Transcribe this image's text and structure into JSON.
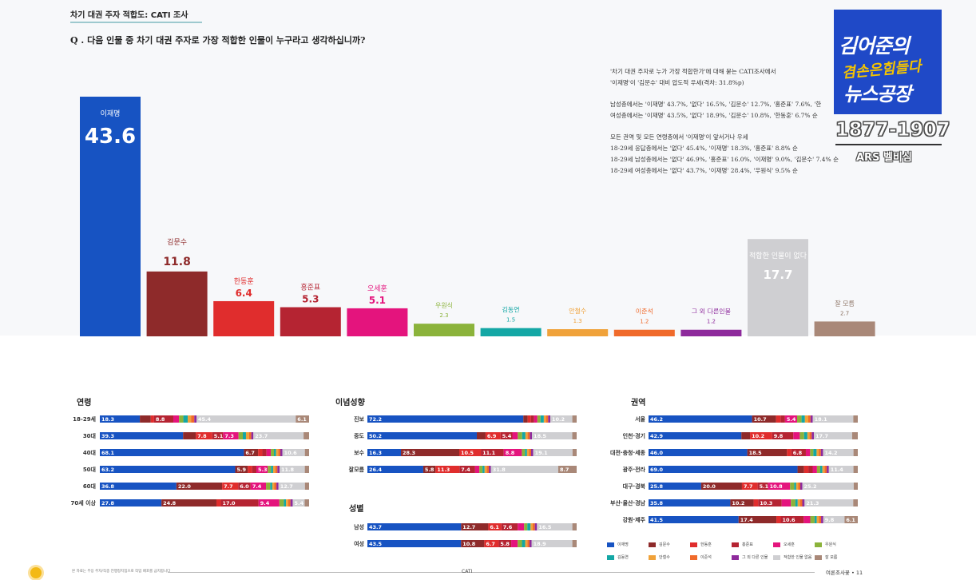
{
  "header": {
    "title": "차기 대권 주자 적합도: CATI 조사",
    "question": "Q . 다음 인물 중 차기 대권 주자로 가장 적합한 인물이 누구라고 생각하십니까?"
  },
  "summary": [
    "'차기 대권 주자로 누가 가장 적합한가'에 대해 묻는 CATI조사에서",
    "'이재명'이 '김문수' 대비 압도적 우세(격차: 31.8%p)",
    "",
    "남성층에서는 '이재명' 43.7%, '없다' 16.5%, '김문수' 12.7%, '홍준표' 7.6%, '한",
    "여성층에서는 '이재명' 43.5%, '없다' 18.9%, '김문수' 10.8%, '한동훈' 6.7% 순",
    "",
    "모든 권역 및 모든 연령층에서 '이재명'이 앞서거나 우세",
    "18-29세 응답층에서는 '없다' 45.4%, '이재명' 18.3%, '홍준표' 8.8% 순",
    "18-29세 남성층에서는 '없다' 46.9%, '홍준표' 16.0%, '이재명' 9.0%, '김문수' 7.4% 순",
    "18-29세 여성층에서는 '없다' 43.7%, '이재명' 28.4%, '우원식' 9.5% 순"
  ],
  "logo": {
    "line1": "김어준의",
    "line2": "겸손은힘들다",
    "line3": "뉴스공장",
    "phone": "1877-1907",
    "ars": "ARS 벨비심"
  },
  "chart_data": [
    {
      "type": "bar",
      "categories": [
        "이재명",
        "김문수",
        "한동훈",
        "홍준표",
        "오세훈",
        "우원식",
        "김동연",
        "안철수",
        "이준석",
        "그 외 다른인물",
        "적합한 인물이 없다",
        "잘 모름"
      ],
      "values": [
        43.6,
        11.8,
        6.4,
        5.3,
        5.1,
        2.3,
        1.5,
        1.3,
        1.2,
        1.2,
        17.7,
        2.7
      ],
      "colors": [
        "#1753c2",
        "#8e2a2a",
        "#e02d2d",
        "#b52432",
        "#e4147d",
        "#8bb33b",
        "#14a7a5",
        "#f0a23a",
        "#f06a2b",
        "#8e2a9c",
        "#cfcfd2",
        "#a98878"
      ],
      "label_colors": [
        "#ffffff",
        "#8e2a2a",
        "#e02d2d",
        "#b52432",
        "#e4147d",
        "#8bb33b",
        "#14a7a5",
        "#f0a23a",
        "#f06a2b",
        "#8e2a9c",
        "#ffffff",
        "#8a7060"
      ],
      "ylim": [
        0,
        43.6
      ]
    },
    {
      "type": "bar",
      "stacked": true,
      "orientation": "horizontal",
      "title": "연령",
      "categories": [
        "18-29세",
        "30대",
        "40대",
        "50대",
        "60대",
        "70세 이상"
      ],
      "series_values": [
        [
          18.3,
          5.0,
          1.5,
          8.8,
          2.6,
          2.0,
          2.0,
          1.5,
          1.5,
          1.0,
          45.4,
          6.1
        ],
        [
          39.3,
          6.0,
          7.8,
          5.1,
          7.3,
          2.0,
          1.5,
          1.5,
          1.0,
          1.0,
          23.7,
          2.6
        ],
        [
          68.1,
          6.7,
          2.0,
          2.0,
          2.0,
          1.5,
          1.0,
          1.0,
          1.0,
          1.0,
          10.6,
          2.0
        ],
        [
          63.2,
          5.9,
          2.0,
          2.0,
          5.3,
          1.5,
          1.0,
          1.0,
          1.0,
          1.0,
          11.8,
          2.0
        ],
        [
          36.8,
          22.0,
          7.7,
          6.0,
          7.4,
          2.0,
          1.0,
          1.0,
          1.0,
          1.0,
          12.7,
          2.0
        ],
        [
          27.8,
          24.8,
          2.0,
          17.0,
          9.4,
          2.0,
          1.0,
          1.0,
          1.0,
          1.0,
          5.4,
          2.0
        ]
      ],
      "labels": [
        [
          "18.3",
          "",
          "",
          "8.8",
          "",
          "",
          "",
          "",
          "",
          "",
          "45.4",
          "6.1"
        ],
        [
          "39.3",
          "",
          "7.8",
          "5.1",
          "7.3",
          "",
          "",
          "",
          "",
          "",
          "23.7",
          ""
        ],
        [
          "68.1",
          "6.7",
          "",
          "",
          "",
          "",
          "",
          "",
          "",
          "",
          "10.6",
          ""
        ],
        [
          "63.2",
          "5.9",
          "",
          "",
          "5.3",
          "",
          "",
          "",
          "",
          "",
          "11.8",
          ""
        ],
        [
          "36.8",
          "22.0",
          "7.7",
          "6.0",
          "7.4",
          "",
          "",
          "",
          "",
          "",
          "12.7",
          ""
        ],
        [
          "27.8",
          "24.8",
          "",
          "17.0",
          "9.4",
          "",
          "",
          "",
          "",
          "",
          "5.4",
          ""
        ]
      ]
    },
    {
      "type": "bar",
      "stacked": true,
      "orientation": "horizontal",
      "title": "이념성향",
      "categories": [
        "진보",
        "중도",
        "보수",
        "잘모름"
      ],
      "series_values": [
        [
          72.2,
          2.0,
          1.5,
          1.5,
          1.5,
          1.5,
          1.5,
          1.0,
          1.0,
          1.0,
          10.2,
          2.0
        ],
        [
          50.2,
          4.0,
          6.9,
          5.4,
          2.5,
          2.0,
          1.5,
          1.0,
          1.0,
          1.0,
          18.5,
          2.0
        ],
        [
          16.3,
          28.3,
          10.5,
          11.1,
          8.8,
          1.5,
          1.0,
          1.0,
          1.0,
          1.0,
          19.1,
          2.0
        ],
        [
          26.4,
          5.8,
          11.3,
          7.4,
          2.0,
          1.5,
          1.0,
          1.0,
          1.0,
          1.0,
          31.8,
          8.7
        ]
      ],
      "labels": [
        [
          "72.2",
          "",
          "",
          "",
          "",
          "",
          "",
          "",
          "",
          "",
          "10.2",
          ""
        ],
        [
          "50.2",
          "",
          "6.9",
          "5.4",
          "",
          "",
          "",
          "",
          "",
          "",
          "18.5",
          ""
        ],
        [
          "16.3",
          "28.3",
          "10.5",
          "11.1",
          "8.8",
          "",
          "",
          "",
          "",
          "",
          "19.1",
          ""
        ],
        [
          "26.4",
          "5.8",
          "11.3",
          "7.4",
          "",
          "",
          "",
          "",
          "",
          "",
          "31.8",
          "8.7"
        ]
      ]
    },
    {
      "type": "bar",
      "stacked": true,
      "orientation": "horizontal",
      "title": "성별",
      "categories": [
        "남성",
        "여성"
      ],
      "series_values": [
        [
          43.7,
          12.7,
          6.1,
          7.6,
          3.0,
          1.5,
          1.5,
          1.0,
          1.0,
          1.0,
          16.5,
          2.0
        ],
        [
          43.5,
          10.8,
          6.7,
          5.8,
          3.0,
          2.0,
          1.5,
          1.0,
          1.0,
          1.0,
          18.9,
          2.0
        ]
      ],
      "labels": [
        [
          "43.7",
          "12.7",
          "6.1",
          "7.6",
          "",
          "",
          "",
          "",
          "",
          "",
          "16.5",
          ""
        ],
        [
          "43.5",
          "10.8",
          "6.7",
          "5.8",
          "",
          "",
          "",
          "",
          "",
          "",
          "18.9",
          ""
        ]
      ]
    },
    {
      "type": "bar",
      "stacked": true,
      "orientation": "horizontal",
      "title": "권역",
      "categories": [
        "서울",
        "인천·경기",
        "대전·충청·세종",
        "광주·전라",
        "대구·경북",
        "부산·울산·경남",
        "강원·제주"
      ],
      "series_values": [
        [
          46.2,
          10.7,
          2.0,
          2.0,
          5.4,
          2.0,
          1.5,
          1.5,
          1.0,
          1.0,
          18.1,
          2.0
        ],
        [
          42.9,
          4.0,
          10.2,
          9.8,
          3.0,
          2.0,
          1.5,
          1.0,
          1.0,
          1.0,
          17.7,
          2.6
        ],
        [
          46.0,
          18.5,
          2.0,
          6.8,
          2.0,
          1.5,
          1.5,
          1.0,
          1.0,
          1.0,
          14.2,
          2.0
        ],
        [
          69.0,
          3.0,
          2.0,
          2.0,
          2.0,
          1.5,
          1.0,
          1.0,
          1.0,
          1.0,
          11.4,
          2.0
        ],
        [
          25.8,
          20.0,
          7.7,
          5.1,
          10.8,
          2.0,
          1.0,
          1.0,
          1.0,
          1.0,
          25.2,
          2.0
        ],
        [
          35.8,
          10.2,
          2.0,
          10.3,
          4.0,
          2.0,
          1.0,
          1.0,
          1.0,
          1.0,
          21.3,
          2.0
        ],
        [
          41.5,
          17.4,
          2.0,
          10.6,
          3.0,
          2.0,
          1.0,
          1.0,
          1.0,
          1.0,
          9.8,
          6.1
        ]
      ],
      "labels": [
        [
          "46.2",
          "10.7",
          "",
          "",
          "5.4",
          "",
          "",
          "",
          "",
          "",
          "18.1",
          ""
        ],
        [
          "42.9",
          "",
          "10.2",
          "9.8",
          "",
          "",
          "",
          "",
          "",
          "",
          "17.7",
          ""
        ],
        [
          "46.0",
          "18.5",
          "",
          "6.8",
          "",
          "",
          "",
          "",
          "",
          "",
          "14.2",
          ""
        ],
        [
          "69.0",
          "",
          "",
          "",
          "",
          "",
          "",
          "",
          "",
          "",
          "11.4",
          ""
        ],
        [
          "25.8",
          "20.0",
          "7.7",
          "5.1",
          "10.8",
          "",
          "",
          "",
          "",
          "",
          "25.2",
          ""
        ],
        [
          "35.8",
          "10.2",
          "",
          "10.3",
          "",
          "",
          "",
          "",
          "",
          "",
          "21.3",
          ""
        ],
        [
          "41.5",
          "17.4",
          "",
          "10.6",
          "",
          "",
          "",
          "",
          "",
          "",
          "9.8",
          "6.1"
        ]
      ]
    }
  ],
  "legend": [
    {
      "label": "이재명",
      "color": "#1753c2"
    },
    {
      "label": "김문수",
      "color": "#8e2a2a"
    },
    {
      "label": "한동훈",
      "color": "#e02d2d"
    },
    {
      "label": "홍준표",
      "color": "#b52432"
    },
    {
      "label": "오세훈",
      "color": "#e4147d"
    },
    {
      "label": "우원식",
      "color": "#8bb33b"
    },
    {
      "label": "김동연",
      "color": "#14a7a5"
    },
    {
      "label": "안철수",
      "color": "#f0a23a"
    },
    {
      "label": "이준석",
      "color": "#f06a2b"
    },
    {
      "label": "그 외 다른 인물",
      "color": "#8e2a9c"
    },
    {
      "label": "적합한 인물 없음",
      "color": "#cfcfd2"
    },
    {
      "label": "잘 모름",
      "color": "#a98878"
    }
  ],
  "footer": {
    "note": "본 자료는 무응 주자/직종 전행정지침으로 작업 배포를 금지합니다",
    "center": "CATI",
    "right": "여론조사꽃 • 11"
  }
}
